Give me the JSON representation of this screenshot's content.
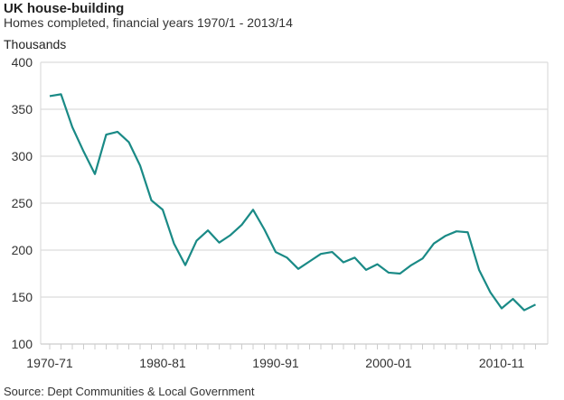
{
  "chart_data": {
    "type": "line",
    "title": "UK house-building",
    "subtitle": "Homes completed, financial years 1970/1 - 2013/14",
    "ylabel": "Thousands",
    "xlabel": "",
    "source": "Source: Dept Communities & Local Government",
    "ylim": [
      100,
      400
    ],
    "yticks": [
      100,
      150,
      200,
      250,
      300,
      350,
      400
    ],
    "xtick_labels": [
      {
        "index": 0,
        "label": "1970-71"
      },
      {
        "index": 10,
        "label": "1980-81"
      },
      {
        "index": 20,
        "label": "1990-91"
      },
      {
        "index": 30,
        "label": "2000-01"
      },
      {
        "index": 40,
        "label": "2010-11"
      }
    ],
    "grid": true,
    "line_color": "#1a8a86",
    "series": [
      {
        "name": "Homes completed",
        "start_year": 1970,
        "values": [
          364,
          366,
          331,
          305,
          281,
          323,
          326,
          315,
          290,
          253,
          243,
          207,
          184,
          210,
          221,
          208,
          216,
          227,
          243,
          222,
          198,
          192,
          180,
          188,
          196,
          198,
          187,
          192,
          179,
          185,
          176,
          175,
          184,
          191,
          207,
          215,
          220,
          219,
          179,
          155,
          138,
          148,
          136,
          142
        ]
      }
    ]
  }
}
